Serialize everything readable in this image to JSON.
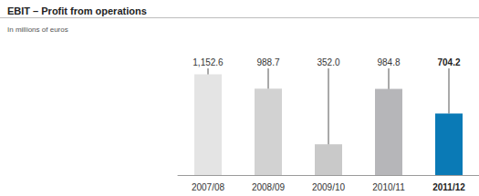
{
  "chart_data": {
    "type": "bar",
    "title": "EBIT – Profit from operations",
    "subtitle": "In millions of euros",
    "categories": [
      "2007/08",
      "2008/09",
      "2009/10",
      "2010/11",
      "2011/12"
    ],
    "values": [
      1152.6,
      988.7,
      352.0,
      984.8,
      704.2
    ],
    "value_labels": [
      "1,152.6",
      "988.7",
      "352.0",
      "984.8",
      "704.2"
    ],
    "colors": [
      "#e4e4e4",
      "#d2d2d2",
      "#c9c9c9",
      "#b6b6b9",
      "#0a7ab6"
    ],
    "ylim": [
      0,
      1200
    ],
    "yticks": [
      0,
      1200
    ],
    "grid": false,
    "data_labels": true,
    "tick_labels": "x"
  }
}
